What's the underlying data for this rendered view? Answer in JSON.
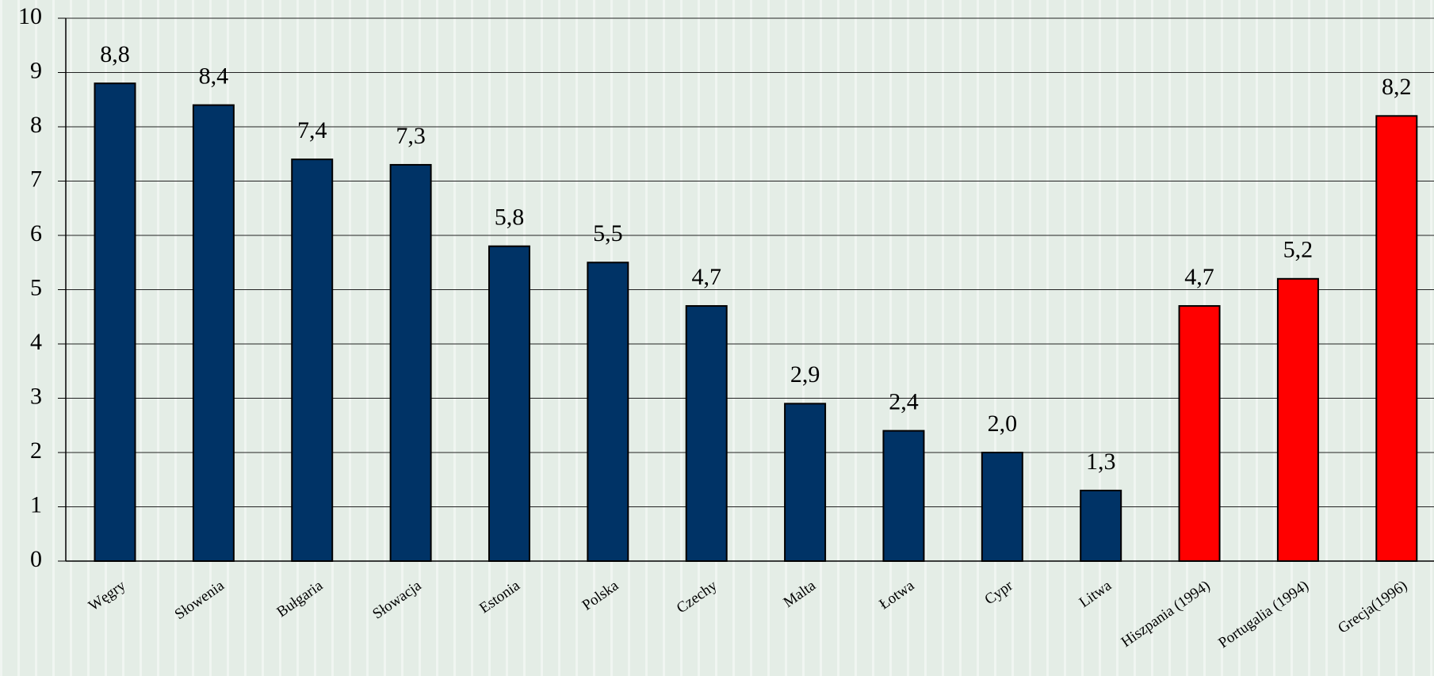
{
  "chart_data": {
    "type": "bar",
    "categories": [
      "Węgry",
      "Słowenia",
      "Bułgaria",
      "Słowacja",
      "Estonia",
      "Polska",
      "Czechy",
      "Malta",
      "Łotwa",
      "Cypr",
      "Litwa",
      "Hiszpania (1994)",
      "Portugalia (1994)",
      "Grecja(1996)"
    ],
    "values": [
      8.8,
      8.4,
      7.4,
      7.3,
      5.8,
      5.5,
      4.7,
      2.9,
      2.4,
      2.0,
      1.3,
      4.7,
      5.2,
      8.2
    ],
    "value_labels": [
      "8,8",
      "8,4",
      "7,4",
      "7,3",
      "5,8",
      "5,5",
      "4,7",
      "2,9",
      "2,4",
      "2,0",
      "1,3",
      "4,7",
      "5,2",
      "8,2"
    ],
    "colors": [
      "#003366",
      "#003366",
      "#003366",
      "#003366",
      "#003366",
      "#003366",
      "#003366",
      "#003366",
      "#003366",
      "#003366",
      "#003366",
      "#ff0000",
      "#ff0000",
      "#ff0000"
    ],
    "ylim": [
      0,
      10
    ],
    "yticks": [
      0,
      1,
      2,
      3,
      4,
      5,
      6,
      7,
      8,
      9,
      10
    ],
    "grid": true
  }
}
